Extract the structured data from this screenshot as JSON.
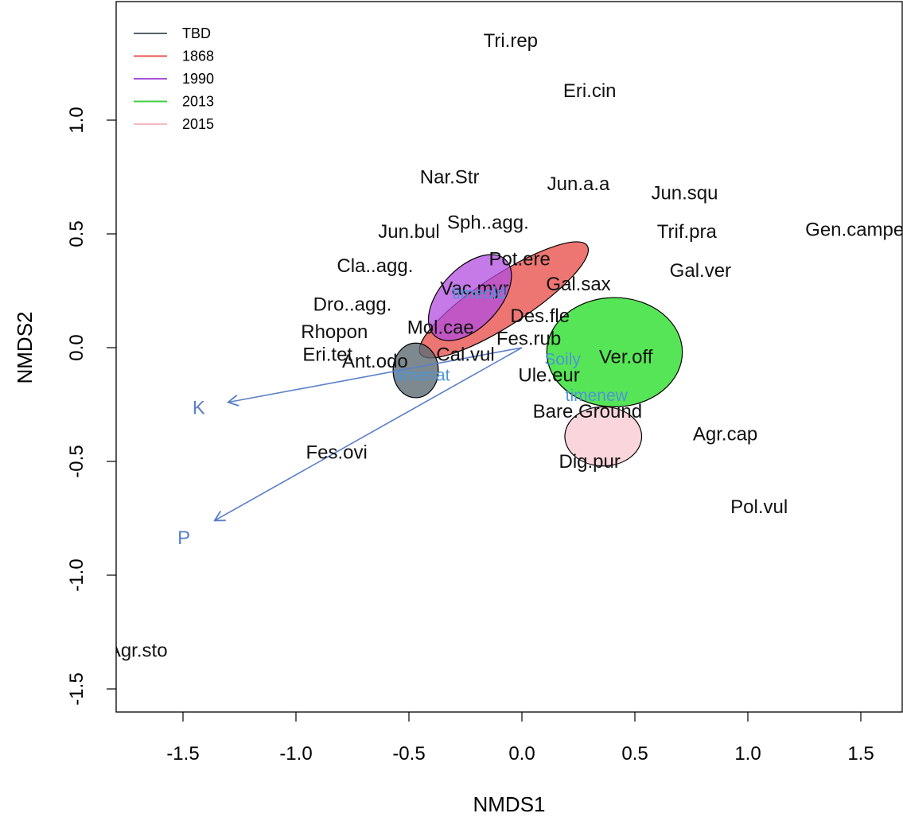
{
  "chart_data": {
    "type": "scatter",
    "title": "",
    "xlabel": "NMDS1",
    "ylabel": "NMDS2",
    "xlim": [
      -1.8,
      1.8
    ],
    "ylim": [
      -1.62,
      1.45
    ],
    "xticks": [
      -1.5,
      -1.0,
      -0.5,
      0.0,
      0.5,
      1.0,
      1.5
    ],
    "yticks": [
      -1.5,
      -1.0,
      -0.5,
      0.0,
      0.5,
      1.0
    ],
    "xtick_labels": [
      "-1.5",
      "-1.0",
      "-0.5",
      "0.0",
      "0.5",
      "1.0",
      "1.5"
    ],
    "ytick_labels": [
      "-1.5",
      "-1.0",
      "-0.5",
      "0.0",
      "0.5",
      "1.0"
    ],
    "grid": false,
    "legend_position": "top-left",
    "legend": [
      {
        "name": "TBD",
        "color": "#56636b"
      },
      {
        "name": "1868",
        "color": "#e8534f"
      },
      {
        "name": "1990",
        "color": "#a652d8"
      },
      {
        "name": "2013",
        "color": "#3fcf3f"
      },
      {
        "name": "2015",
        "color": "#f4b9c3"
      }
    ],
    "ellipses": [
      {
        "group": "2013",
        "cx": 0.41,
        "cy": -0.02,
        "rx": 0.3,
        "ry": 0.24,
        "angle": 0,
        "fill": "#38e038",
        "opacity": 0.85
      },
      {
        "group": "2015",
        "cx": 0.36,
        "cy": -0.39,
        "rx": 0.17,
        "ry": 0.13,
        "angle": 0,
        "fill": "#f9d2d8",
        "opacity": 0.9
      },
      {
        "group": "1868",
        "cx": -0.08,
        "cy": 0.21,
        "rx": 0.44,
        "ry": 0.11,
        "angle": 33,
        "fill": "#e8534f",
        "opacity": 0.8
      },
      {
        "group": "1990",
        "cx": -0.23,
        "cy": 0.22,
        "rx": 0.23,
        "ry": 0.13,
        "angle": 47,
        "fill": "#b24de0",
        "opacity": 0.75
      },
      {
        "group": "TBD",
        "cx": -0.47,
        "cy": -0.1,
        "rx": 0.1,
        "ry": 0.12,
        "angle": 0,
        "fill": "#5d6b73",
        "opacity": 0.8
      }
    ],
    "vectors": [
      {
        "label": "K",
        "x": -1.3,
        "y": -0.24,
        "color": "#5a7fc9"
      },
      {
        "label": "P",
        "x": -1.36,
        "y": -0.76,
        "color": "#5a7fc9"
      }
    ],
    "centroids": [
      {
        "label": "timeold",
        "x": -0.19,
        "y": 0.24
      },
      {
        "label": "Soily",
        "x": 0.18,
        "y": -0.05
      },
      {
        "label": "timenew",
        "x": 0.33,
        "y": -0.21
      },
      {
        "label": "timenat",
        "x": -0.44,
        "y": -0.12
      }
    ],
    "species": [
      {
        "label": "Tri.rep",
        "x": -0.05,
        "y": 1.35
      },
      {
        "label": "Eri.cin",
        "x": 0.3,
        "y": 1.13
      },
      {
        "label": "Nar.Str",
        "x": -0.32,
        "y": 0.75
      },
      {
        "label": "Jun.a.a",
        "x": 0.25,
        "y": 0.72
      },
      {
        "label": "Jun.squ",
        "x": 0.72,
        "y": 0.68
      },
      {
        "label": "Gen.campestris",
        "x": 1.55,
        "y": 0.52
      },
      {
        "label": "Trif.pra",
        "x": 0.73,
        "y": 0.51
      },
      {
        "label": "Sph..agg.",
        "x": -0.15,
        "y": 0.55
      },
      {
        "label": "Jun.bul",
        "x": -0.5,
        "y": 0.51
      },
      {
        "label": "Pot.ere",
        "x": -0.01,
        "y": 0.39
      },
      {
        "label": "Cla..agg.",
        "x": -0.65,
        "y": 0.36
      },
      {
        "label": "Gal.ver",
        "x": 0.79,
        "y": 0.34
      },
      {
        "label": "Vac.myr",
        "x": -0.21,
        "y": 0.26
      },
      {
        "label": "Gal.sax",
        "x": 0.25,
        "y": 0.28
      },
      {
        "label": "Dro..agg.",
        "x": -0.75,
        "y": 0.19
      },
      {
        "label": "Des.fle",
        "x": 0.08,
        "y": 0.14
      },
      {
        "label": "Mol.cae",
        "x": -0.36,
        "y": 0.09
      },
      {
        "label": "Fes.rub",
        "x": 0.03,
        "y": 0.04
      },
      {
        "label": "Rhopon",
        "x": -0.83,
        "y": 0.07
      },
      {
        "label": "Cal.vul",
        "x": -0.25,
        "y": -0.03
      },
      {
        "label": "Eri.tet",
        "x": -0.86,
        "y": -0.03
      },
      {
        "label": "Ant.odo",
        "x": -0.65,
        "y": -0.06
      },
      {
        "label": "Ver.off",
        "x": 0.46,
        "y": -0.04
      },
      {
        "label": "Ule.eur",
        "x": 0.12,
        "y": -0.12
      },
      {
        "label": "Bare.Ground",
        "x": 0.29,
        "y": -0.28
      },
      {
        "label": "Agr.cap",
        "x": 0.9,
        "y": -0.38
      },
      {
        "label": "Fes.ovi",
        "x": -0.82,
        "y": -0.46
      },
      {
        "label": "Dig.pur",
        "x": 0.3,
        "y": -0.5
      },
      {
        "label": "Pol.vul",
        "x": 1.05,
        "y": -0.7
      },
      {
        "label": "Agr.sto",
        "x": -1.7,
        "y": -1.33
      }
    ]
  }
}
